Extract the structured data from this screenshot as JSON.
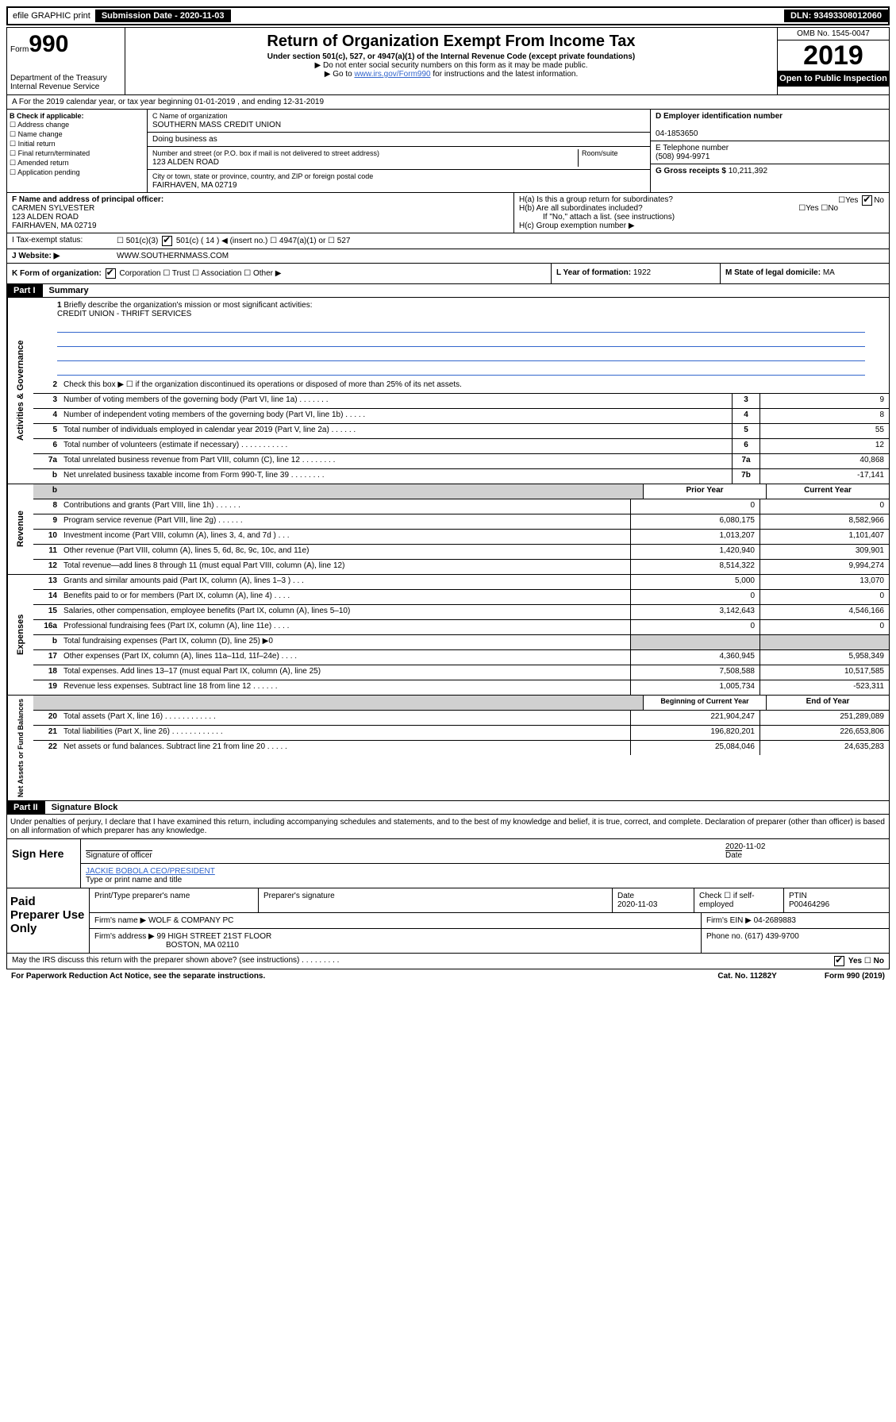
{
  "topbar": {
    "efile": "efile GRAPHIC print",
    "submission_label": "Submission Date - 2020-11-03",
    "dln": "DLN: 93493308012060"
  },
  "header": {
    "form_prefix": "Form",
    "form_number": "990",
    "dept": "Department of the Treasury\nInternal Revenue Service",
    "title": "Return of Organization Exempt From Income Tax",
    "subtitle1": "Under section 501(c), 527, or 4947(a)(1) of the Internal Revenue Code (except private foundations)",
    "subtitle2": "▶ Do not enter social security numbers on this form as it may be made public.",
    "subtitle3_prefix": "▶ Go to ",
    "subtitle3_link": "www.irs.gov/Form990",
    "subtitle3_suffix": " for instructions and the latest information.",
    "omb": "OMB No. 1545-0047",
    "year": "2019",
    "inspection": "Open to Public Inspection"
  },
  "line_a": "A For the 2019 calendar year, or tax year beginning 01-01-2019    , and ending 12-31-2019",
  "box_b": {
    "label": "B Check if applicable:",
    "opts": [
      "Address change",
      "Name change",
      "Initial return",
      "Final return/terminated",
      "Amended return",
      "Application pending"
    ]
  },
  "box_c": {
    "name_label": "C Name of organization",
    "name": "SOUTHERN MASS CREDIT UNION",
    "dba_label": "Doing business as",
    "addr_label": "Number and street (or P.O. box if mail is not delivered to street address)",
    "room_label": "Room/suite",
    "addr": "123 ALDEN ROAD",
    "city_label": "City or town, state or province, country, and ZIP or foreign postal code",
    "city": "FAIRHAVEN, MA  02719"
  },
  "box_d": {
    "label": "D Employer identification number",
    "value": "04-1853650"
  },
  "box_e": {
    "label": "E Telephone number",
    "value": "(508) 994-9971"
  },
  "box_g": {
    "label": "G Gross receipts $",
    "value": "10,211,392"
  },
  "box_f": {
    "label": "F Name and address of principal officer:",
    "name": "CARMEN SYLVESTER",
    "addr": "123 ALDEN ROAD",
    "city": "FAIRHAVEN, MA  02719"
  },
  "box_h": {
    "ha": "H(a)  Is this a group return for subordinates?",
    "hb": "H(b)  Are all subordinates included?",
    "hb_note": "If \"No,\" attach a list. (see instructions)",
    "hc": "H(c)  Group exemption number ▶",
    "yes": "Yes",
    "no": "No"
  },
  "box_i": {
    "label": "I    Tax-exempt status:",
    "insert": "501(c) ( 14 ) ◀ (insert no.)"
  },
  "box_j": {
    "label": "J    Website: ▶",
    "value": "WWW.SOUTHERNMASS.COM"
  },
  "box_k": {
    "label": "K Form of organization:",
    "opts": "Corporation ☐ Trust ☐ Association ☐ Other ▶"
  },
  "box_l": {
    "label": "L Year of formation:",
    "value": "1922"
  },
  "box_m": {
    "label": "M State of legal domicile:",
    "value": "MA"
  },
  "part1": {
    "header": "Part I",
    "title": "Summary"
  },
  "summary": {
    "line1": "Briefly describe the organization's mission or most significant activities:",
    "mission": "CREDIT UNION - THRIFT SERVICES",
    "line2": "Check this box ▶ ☐  if the organization discontinued its operations or disposed of more than 25% of its net assets.",
    "rows_gov": [
      {
        "n": "3",
        "d": "Number of voting members of the governing body (Part VI, line 1a)   .    .    .    .    .    .    .",
        "c": "3",
        "v": "9"
      },
      {
        "n": "4",
        "d": "Number of independent voting members of the governing body (Part VI, line 1b)   .    .    .    .    .",
        "c": "4",
        "v": "8"
      },
      {
        "n": "5",
        "d": "Total number of individuals employed in calendar year 2019 (Part V, line 2a)   .    .    .    .    .    .",
        "c": "5",
        "v": "55"
      },
      {
        "n": "6",
        "d": "Total number of volunteers (estimate if necessary)   .    .    .    .    .    .    .    .    .    .    .",
        "c": "6",
        "v": "12"
      },
      {
        "n": "7a",
        "d": "Total unrelated business revenue from Part VIII, column (C), line 12  .    .    .    .    .    .    .    .",
        "c": "7a",
        "v": "40,868"
      },
      {
        "n": "b",
        "d": "Net unrelated business taxable income from Form 990-T, line 39   .    .    .    .    .    .    .    .",
        "c": "7b",
        "v": "-17,141"
      }
    ],
    "col_head_prior": "Prior Year",
    "col_head_current": "Current Year",
    "rows_rev": [
      {
        "n": "8",
        "d": "Contributions and grants (Part VIII, line 1h)   .    .    .    .    .    .",
        "p": "0",
        "c": "0"
      },
      {
        "n": "9",
        "d": "Program service revenue (Part VIII, line 2g)   .    .    .    .    .    .",
        "p": "6,080,175",
        "c": "8,582,966"
      },
      {
        "n": "10",
        "d": "Investment income (Part VIII, column (A), lines 3, 4, and 7d )   .    .    .",
        "p": "1,013,207",
        "c": "1,101,407"
      },
      {
        "n": "11",
        "d": "Other revenue (Part VIII, column (A), lines 5, 6d, 8c, 9c, 10c, and 11e)",
        "p": "1,420,940",
        "c": "309,901"
      },
      {
        "n": "12",
        "d": "Total revenue—add lines 8 through 11 (must equal Part VIII, column (A), line 12)",
        "p": "8,514,322",
        "c": "9,994,274"
      }
    ],
    "rows_exp": [
      {
        "n": "13",
        "d": "Grants and similar amounts paid (Part IX, column (A), lines 1–3 )   .    .    .",
        "p": "5,000",
        "c": "13,070"
      },
      {
        "n": "14",
        "d": "Benefits paid to or for members (Part IX, column (A), line 4)   .    .    .    .",
        "p": "0",
        "c": "0"
      },
      {
        "n": "15",
        "d": "Salaries, other compensation, employee benefits (Part IX, column (A), lines 5–10)",
        "p": "3,142,643",
        "c": "4,546,166"
      },
      {
        "n": "16a",
        "d": "Professional fundraising fees (Part IX, column (A), line 11e)   .    .    .    .",
        "p": "0",
        "c": "0"
      },
      {
        "n": "b",
        "d": "Total fundraising expenses (Part IX, column (D), line 25) ▶0",
        "p": "",
        "c": "",
        "grey": true
      },
      {
        "n": "17",
        "d": "Other expenses (Part IX, column (A), lines 11a–11d, 11f–24e)   .    .    .    .",
        "p": "4,360,945",
        "c": "5,958,349"
      },
      {
        "n": "18",
        "d": "Total expenses. Add lines 13–17 (must equal Part IX, column (A), line 25)",
        "p": "7,508,588",
        "c": "10,517,585"
      },
      {
        "n": "19",
        "d": "Revenue less expenses. Subtract line 18 from line 12    .    .    .    .    .    .",
        "p": "1,005,734",
        "c": "-523,311"
      }
    ],
    "col_head_begin": "Beginning of Current Year",
    "col_head_end": "End of Year",
    "rows_net": [
      {
        "n": "20",
        "d": "Total assets (Part X, line 16)   .    .    .    .    .    .    .    .    .    .    .    .",
        "p": "221,904,247",
        "c": "251,289,089"
      },
      {
        "n": "21",
        "d": "Total liabilities (Part X, line 26)  .    .    .    .    .    .    .    .    .    .    .    .",
        "p": "196,820,201",
        "c": "226,653,806"
      },
      {
        "n": "22",
        "d": "Net assets or fund balances. Subtract line 21 from line 20  .    .    .    .    .",
        "p": "25,084,046",
        "c": "24,635,283"
      }
    ]
  },
  "side_labels": {
    "gov": "Activities & Governance",
    "rev": "Revenue",
    "exp": "Expenses",
    "net": "Net Assets or Fund Balances"
  },
  "part2": {
    "header": "Part II",
    "title": "Signature Block"
  },
  "perjury": "Under penalties of perjury, I declare that I have examined this return, including accompanying schedules and statements, and to the best of my knowledge and belief, it is true, correct, and complete. Declaration of preparer (other than officer) is based on all information of which preparer has any knowledge.",
  "sign": {
    "here": "Sign Here",
    "sig_officer": "Signature of officer",
    "date": "2020-11-02",
    "date_label": "Date",
    "name": "JACKIE BOBOLA CEO/PRESIDENT",
    "name_label": "Type or print name and title"
  },
  "paid": {
    "label": "Paid Preparer Use Only",
    "h1": "Print/Type preparer's name",
    "h2": "Preparer's signature",
    "h3": "Date",
    "h3v": "2020-11-03",
    "h4": "Check ☐ if self-employed",
    "h5": "PTIN",
    "h5v": "P00464296",
    "firm_name_label": "Firm's name    ▶",
    "firm_name": "WOLF & COMPANY PC",
    "firm_ein_label": "Firm's EIN ▶",
    "firm_ein": "04-2689883",
    "firm_addr_label": "Firm's address ▶",
    "firm_addr": "99 HIGH STREET 21ST FLOOR",
    "firm_city": "BOSTON, MA  02110",
    "phone_label": "Phone no.",
    "phone": "(617) 439-9700"
  },
  "discuss": "May the IRS discuss this return with the preparer shown above? (see instructions)    .    .    .    .    .    .    .    .    .",
  "footer": {
    "left": "For Paperwork Reduction Act Notice, see the separate instructions.",
    "mid": "Cat. No. 11282Y",
    "right": "Form 990 (2019)"
  }
}
